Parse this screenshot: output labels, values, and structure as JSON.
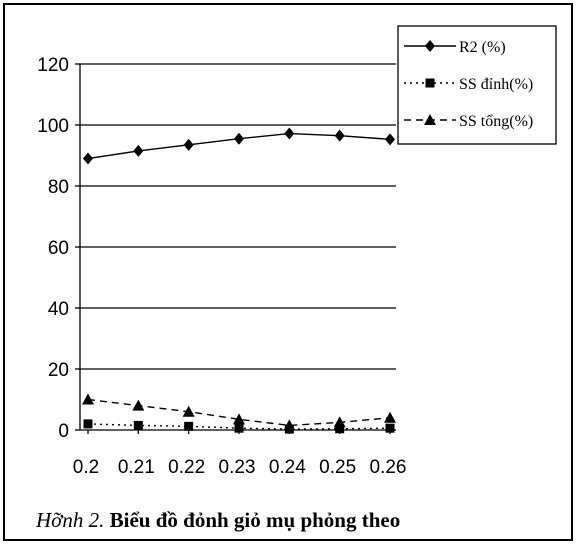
{
  "chart_data": {
    "type": "line",
    "x": [
      0.2,
      0.21,
      0.22,
      0.23,
      0.24,
      0.25,
      0.26
    ],
    "x_tick_labels": [
      "0.2",
      "0.21",
      "0.22",
      "0.23",
      "0.24",
      "0.25",
      "0.26"
    ],
    "y_ticks": [
      0,
      20,
      40,
      60,
      80,
      100,
      120
    ],
    "ylim": [
      0,
      120
    ],
    "grid": "horizontal",
    "legend_position": "top-right",
    "series": [
      {
        "name": "R2 (%)",
        "values": [
          89,
          91.5,
          93.5,
          95.5,
          97.2,
          96.5,
          95.3
        ],
        "color": "#000000",
        "line_style": "solid",
        "marker": "diamond"
      },
      {
        "name": "SS đỉnh(%)",
        "values": [
          2,
          1.5,
          1.2,
          0.6,
          0.3,
          0.4,
          0.6
        ],
        "color": "#000000",
        "line_style": "dotted",
        "marker": "square"
      },
      {
        "name": "SS tổng(%)",
        "values": [
          10,
          8,
          6,
          3.5,
          1.5,
          2.5,
          4
        ],
        "color": "#000000",
        "line_style": "dashed",
        "marker": "triangle"
      }
    ]
  },
  "caption": {
    "figure_label": "Hỡnh 2.",
    "title": "Biểu đồ đỏnh giỏ mụ phỏng theo"
  }
}
